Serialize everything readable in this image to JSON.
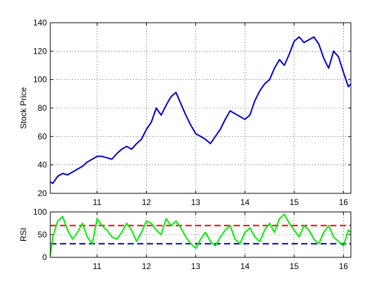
{
  "chart_data": [
    {
      "type": "line",
      "ylabel": "Stock Price",
      "xlabel": "",
      "xlim": [
        10.05,
        16.15
      ],
      "ylim": [
        20,
        140
      ],
      "xticks": [
        11,
        12,
        13,
        14,
        15,
        16
      ],
      "yticks": [
        20,
        40,
        60,
        80,
        100,
        120,
        140
      ],
      "grid": true,
      "series": [
        {
          "color": "#0000cc",
          "x": [
            10.05,
            10.1,
            10.2,
            10.3,
            10.4,
            10.5,
            10.6,
            10.7,
            10.8,
            10.9,
            11.0,
            11.1,
            11.2,
            11.3,
            11.4,
            11.5,
            11.6,
            11.7,
            11.8,
            11.9,
            12.0,
            12.1,
            12.2,
            12.3,
            12.4,
            12.5,
            12.6,
            12.7,
            12.8,
            12.9,
            13.0,
            13.1,
            13.2,
            13.3,
            13.4,
            13.5,
            13.6,
            13.7,
            13.8,
            13.9,
            14.0,
            14.1,
            14.2,
            14.3,
            14.4,
            14.5,
            14.6,
            14.7,
            14.8,
            14.9,
            15.0,
            15.1,
            15.2,
            15.3,
            15.4,
            15.5,
            15.6,
            15.7,
            15.8,
            15.9,
            16.0,
            16.1,
            16.15
          ],
          "y": [
            28,
            27,
            32,
            34,
            33,
            35,
            37,
            39,
            42,
            44,
            46,
            46,
            45,
            44,
            48,
            51,
            53,
            51,
            55,
            58,
            65,
            70,
            80,
            75,
            82,
            88,
            91,
            83,
            75,
            68,
            62,
            60,
            58,
            55,
            60,
            65,
            72,
            78,
            76,
            74,
            72,
            75,
            85,
            92,
            97,
            100,
            108,
            114,
            110,
            118,
            127,
            130,
            126,
            128,
            130,
            125,
            115,
            108,
            120,
            116,
            105,
            95,
            97
          ]
        }
      ]
    },
    {
      "type": "line",
      "ylabel": "RSI",
      "xlabel": "",
      "xlim": [
        10.05,
        16.15
      ],
      "ylim": [
        0,
        100
      ],
      "xticks": [
        11,
        12,
        13,
        14,
        15,
        16
      ],
      "yticks": [
        0,
        50,
        100
      ],
      "grid": true,
      "reference_lines": [
        {
          "y": 70,
          "color": "#ff0000",
          "style": "dashed"
        },
        {
          "y": 30,
          "color": "#0000cc",
          "style": "dashed"
        }
      ],
      "series": [
        {
          "color": "#00ee00",
          "x": [
            10.05,
            10.1,
            10.2,
            10.3,
            10.4,
            10.5,
            10.6,
            10.7,
            10.8,
            10.9,
            11.0,
            11.1,
            11.2,
            11.3,
            11.4,
            11.5,
            11.6,
            11.7,
            11.8,
            11.9,
            12.0,
            12.1,
            12.2,
            12.3,
            12.4,
            12.5,
            12.6,
            12.7,
            12.8,
            12.9,
            13.0,
            13.1,
            13.2,
            13.3,
            13.4,
            13.5,
            13.6,
            13.7,
            13.8,
            13.9,
            14.0,
            14.1,
            14.2,
            14.3,
            14.4,
            14.5,
            14.6,
            14.7,
            14.8,
            14.9,
            15.0,
            15.1,
            15.2,
            15.3,
            15.4,
            15.5,
            15.6,
            15.7,
            15.8,
            15.9,
            16.0,
            16.1,
            16.15
          ],
          "y": [
            5,
            45,
            80,
            90,
            60,
            40,
            55,
            75,
            45,
            30,
            85,
            70,
            60,
            45,
            40,
            55,
            75,
            60,
            35,
            55,
            80,
            75,
            60,
            50,
            85,
            70,
            80,
            65,
            45,
            30,
            20,
            40,
            55,
            35,
            25,
            45,
            60,
            70,
            40,
            30,
            55,
            65,
            45,
            35,
            60,
            75,
            55,
            85,
            95,
            75,
            60,
            45,
            70,
            60,
            40,
            30,
            55,
            70,
            45,
            35,
            25,
            60,
            55
          ]
        }
      ]
    }
  ]
}
